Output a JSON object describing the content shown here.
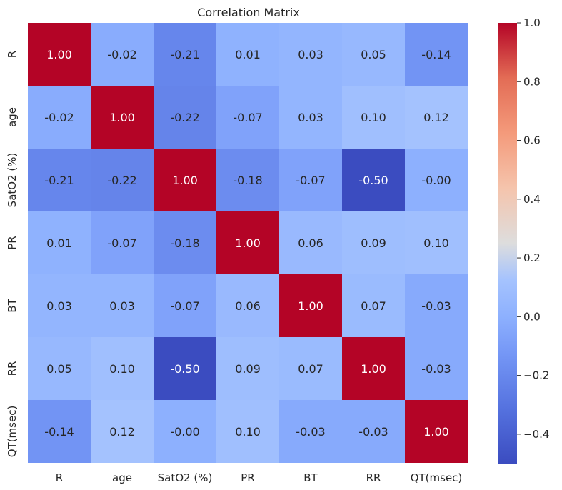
{
  "chart_data": {
    "type": "heatmap",
    "title": "Correlation Matrix",
    "xlabel": "",
    "ylabel": "",
    "x_labels": [
      "R",
      "age",
      "SatO2 (%)",
      "PR",
      "BT",
      "RR",
      "QT(msec)"
    ],
    "y_labels": [
      "R",
      "age",
      "SatO2 (%)",
      "PR",
      "BT",
      "RR",
      "QT(msec)"
    ],
    "values": [
      [
        1.0,
        -0.02,
        -0.21,
        0.01,
        0.03,
        0.05,
        -0.14
      ],
      [
        -0.02,
        1.0,
        -0.22,
        -0.07,
        0.03,
        0.1,
        0.12
      ],
      [
        -0.21,
        -0.22,
        1.0,
        -0.18,
        -0.07,
        -0.5,
        -0.0
      ],
      [
        0.01,
        -0.07,
        -0.18,
        1.0,
        0.06,
        0.09,
        0.1
      ],
      [
        0.03,
        0.03,
        -0.07,
        0.06,
        1.0,
        0.07,
        -0.03
      ],
      [
        0.05,
        0.1,
        -0.5,
        0.09,
        0.07,
        1.0,
        -0.03
      ],
      [
        -0.14,
        0.12,
        -0.0,
        0.1,
        -0.03,
        -0.03,
        1.0
      ]
    ],
    "cell_labels": [
      [
        "1.00",
        "-0.02",
        "-0.21",
        "0.01",
        "0.03",
        "0.05",
        "-0.14"
      ],
      [
        "-0.02",
        "1.00",
        "-0.22",
        "-0.07",
        "0.03",
        "0.10",
        "0.12"
      ],
      [
        "-0.21",
        "-0.22",
        "1.00",
        "-0.18",
        "-0.07",
        "-0.50",
        "-0.00"
      ],
      [
        "0.01",
        "-0.07",
        "-0.18",
        "1.00",
        "0.06",
        "0.09",
        "0.10"
      ],
      [
        "0.03",
        "0.03",
        "-0.07",
        "0.06",
        "1.00",
        "0.07",
        "-0.03"
      ],
      [
        "0.05",
        "0.10",
        "-0.50",
        "0.09",
        "0.07",
        "1.00",
        "-0.03"
      ],
      [
        "-0.14",
        "0.12",
        "-0.00",
        "0.10",
        "-0.03",
        "-0.03",
        "1.00"
      ]
    ],
    "colormap": "coolwarm",
    "vmin": -0.5,
    "vmax": 1.0,
    "colorbar": {
      "ticks": [
        -0.4,
        -0.2,
        0.0,
        0.2,
        0.4,
        0.6,
        0.8,
        1.0
      ],
      "tick_labels": [
        "−0.4",
        "−0.2",
        "0.0",
        "0.2",
        "0.4",
        "0.6",
        "0.8",
        "1.0"
      ],
      "placement": "right"
    },
    "grid": false,
    "annotations": true
  }
}
